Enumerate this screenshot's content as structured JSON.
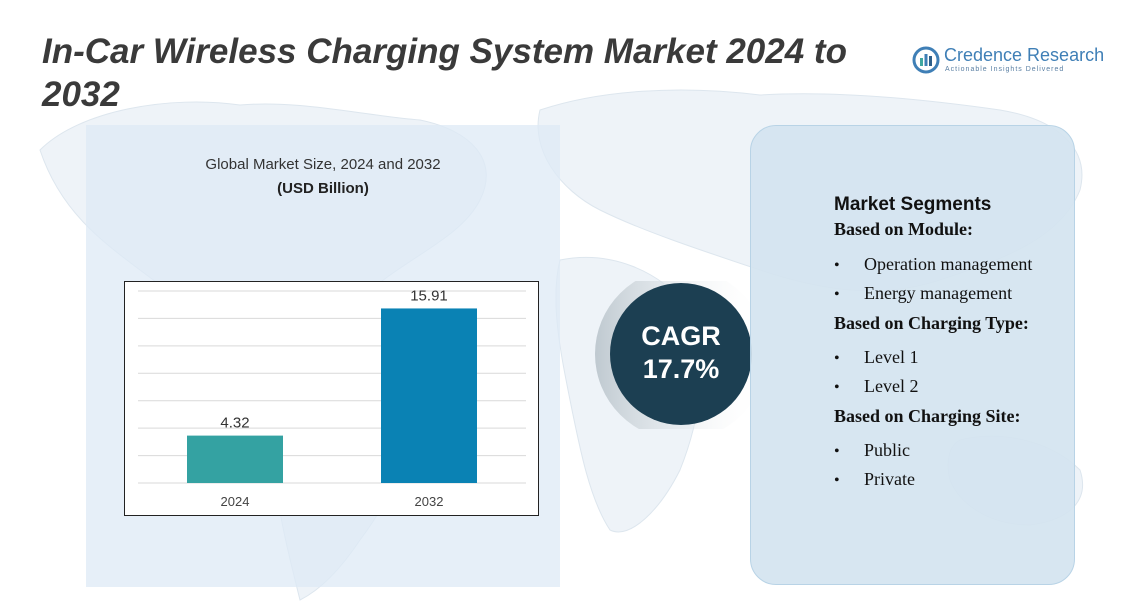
{
  "title": "In-Car Wireless Charging System Market 2024 to 2032",
  "logo": {
    "name": "Credence Research",
    "tagline": "Actionable Insights Delivered",
    "icon": "credence-logo-icon"
  },
  "colors": {
    "bar_2024": "#34a2a2",
    "bar_2032": "#0a82b4",
    "cagr_bg": "#1c3f52",
    "panel_bg": "#dceaf5",
    "title": "#3a3a3a"
  },
  "chart_data": {
    "type": "bar",
    "title": "Global Market Size, 2024 and 2032",
    "subtitle": "(USD Billion)",
    "categories": [
      "2024",
      "2032"
    ],
    "values": [
      4.32,
      15.91
    ],
    "data_labels": [
      "4.32",
      "15.91"
    ],
    "ylim": [
      0,
      17.5
    ],
    "grid": true
  },
  "cagr": {
    "label": "CAGR",
    "value": "17.7%"
  },
  "segments": {
    "heading": "Market Segments",
    "groups": [
      {
        "label": "Based on Module:",
        "items": [
          "Operation management",
          "Energy management"
        ]
      },
      {
        "label": "Based on Charging Type:",
        "items": [
          "Level 1",
          "Level 2"
        ]
      },
      {
        "label": "Based on Charging Site:",
        "items": [
          "Public",
          "Private"
        ]
      }
    ]
  }
}
